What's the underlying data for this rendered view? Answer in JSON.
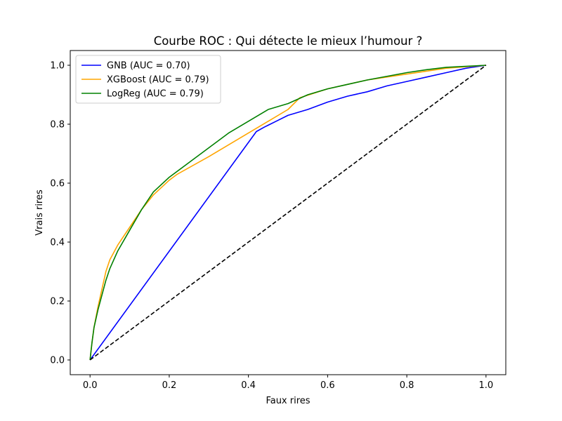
{
  "chart_data": {
    "type": "line",
    "title": "Courbe ROC : Qui détecte le mieux l’humour ?",
    "xlabel": "Faux rires",
    "ylabel": "Vrais rires",
    "xlim": [
      -0.05,
      1.05
    ],
    "ylim": [
      -0.05,
      1.05
    ],
    "xticks": [
      0.0,
      0.2,
      0.4,
      0.6,
      0.8,
      1.0
    ],
    "yticks": [
      0.0,
      0.2,
      0.4,
      0.6,
      0.8,
      1.0
    ],
    "xtick_labels": [
      "0.0",
      "0.2",
      "0.4",
      "0.6",
      "0.8",
      "1.0"
    ],
    "ytick_labels": [
      "0.0",
      "0.2",
      "0.4",
      "0.6",
      "0.8",
      "1.0"
    ],
    "grid": false,
    "legend_position": "top-left",
    "series": [
      {
        "name": "GNB (AUC = 0.70)",
        "color": "#0000ff",
        "style": "solid",
        "x": [
          0.0,
          0.42,
          0.44,
          0.47,
          0.5,
          0.55,
          0.6,
          0.65,
          0.7,
          0.75,
          0.8,
          0.85,
          0.9,
          0.95,
          1.0
        ],
        "y": [
          0.0,
          0.775,
          0.79,
          0.81,
          0.83,
          0.85,
          0.875,
          0.895,
          0.91,
          0.93,
          0.945,
          0.96,
          0.975,
          0.99,
          1.0
        ]
      },
      {
        "name": "XGBoost (AUC = 0.79)",
        "color": "#ffa500",
        "style": "solid",
        "x": [
          0.0,
          0.005,
          0.01,
          0.02,
          0.03,
          0.04,
          0.05,
          0.07,
          0.1,
          0.13,
          0.16,
          0.2,
          0.22,
          0.3,
          0.4,
          0.5,
          0.53,
          0.6,
          0.7,
          0.8,
          0.9,
          1.0
        ],
        "y": [
          0.0,
          0.06,
          0.11,
          0.18,
          0.24,
          0.3,
          0.34,
          0.39,
          0.45,
          0.51,
          0.56,
          0.61,
          0.63,
          0.69,
          0.77,
          0.85,
          0.89,
          0.92,
          0.95,
          0.97,
          0.99,
          1.0
        ]
      },
      {
        "name": "LogReg (AUC = 0.79)",
        "color": "#008000",
        "style": "solid",
        "x": [
          0.0,
          0.005,
          0.01,
          0.02,
          0.03,
          0.04,
          0.05,
          0.07,
          0.1,
          0.13,
          0.16,
          0.2,
          0.25,
          0.3,
          0.35,
          0.4,
          0.45,
          0.5,
          0.55,
          0.6,
          0.65,
          0.7,
          0.8,
          0.85,
          0.9,
          1.0
        ],
        "y": [
          0.0,
          0.06,
          0.11,
          0.17,
          0.22,
          0.27,
          0.31,
          0.37,
          0.44,
          0.51,
          0.57,
          0.62,
          0.67,
          0.72,
          0.77,
          0.81,
          0.85,
          0.87,
          0.9,
          0.92,
          0.935,
          0.95,
          0.975,
          0.985,
          0.993,
          1.0
        ]
      },
      {
        "name": "",
        "color": "#000000",
        "style": "dashed",
        "x": [
          0.0,
          1.0
        ],
        "y": [
          0.0,
          1.0
        ]
      }
    ]
  }
}
